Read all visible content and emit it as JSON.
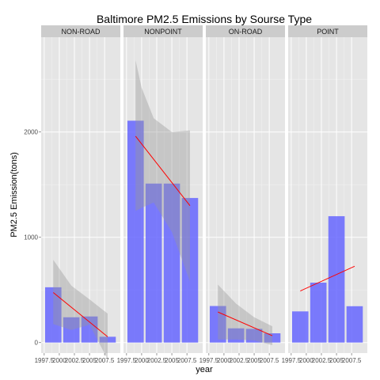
{
  "chart_data": {
    "type": "bar",
    "title": "Baltimore PM2.5 Emissions by Sourse Type",
    "xlabel": "year",
    "ylabel": "PM2.5 Emission(tons)",
    "ylim": [
      -100,
      2900
    ],
    "yticks": [
      0,
      1000,
      2000
    ],
    "xlim": [
      1997.0,
      2010.1
    ],
    "xticks": [
      1997.5,
      2000,
      2002.5,
      2005,
      2007.5
    ],
    "xtick_labels": [
      "1997.5",
      "2000",
      "2002.5",
      "2005",
      "2007.5"
    ],
    "bar_color": "#6666ff",
    "trend_color": "#ff0000",
    "ribbon_color": "#999999",
    "panels": [
      {
        "name": "NON-ROAD",
        "years": [
          1999,
          2002,
          2005,
          2008
        ],
        "values": [
          525,
          240,
          248,
          55
        ],
        "trend": {
          "start": [
            1999,
            475
          ],
          "end": [
            2008,
            55
          ]
        },
        "ribbon": {
          "x": [
            1999,
            2002,
            2005,
            2008
          ],
          "upper": [
            785,
            540,
            410,
            275
          ],
          "lower": [
            175,
            120,
            170,
            -160
          ]
        }
      },
      {
        "name": "NONPOINT",
        "years": [
          1999,
          2002,
          2005,
          2008
        ],
        "values": [
          2107,
          1510,
          1510,
          1373
        ],
        "trend": {
          "start": [
            1999,
            1960
          ],
          "end": [
            2008,
            1300
          ]
        },
        "ribbon": {
          "x": [
            1999,
            2000,
            2002,
            2005,
            2008
          ],
          "upper": [
            2680,
            2420,
            2130,
            2000,
            2015
          ],
          "lower": [
            1250,
            1280,
            1330,
            1050,
            580
          ]
        }
      },
      {
        "name": "ON-ROAD",
        "years": [
          1999,
          2002,
          2005,
          2008
        ],
        "values": [
          347,
          135,
          130,
          88
        ],
        "trend": {
          "start": [
            1999,
            290
          ],
          "end": [
            2008,
            65
          ]
        },
        "ribbon": {
          "x": [
            1999,
            2002,
            2005,
            2008
          ],
          "upper": [
            550,
            370,
            240,
            155
          ],
          "lower": [
            30,
            30,
            20,
            -25
          ]
        }
      },
      {
        "name": "POINT",
        "years": [
          1999,
          2002,
          2005,
          2008
        ],
        "values": [
          296,
          569,
          1200,
          345
        ],
        "trend": {
          "start": [
            1999,
            490
          ],
          "end": [
            2008,
            725
          ]
        }
      }
    ]
  }
}
